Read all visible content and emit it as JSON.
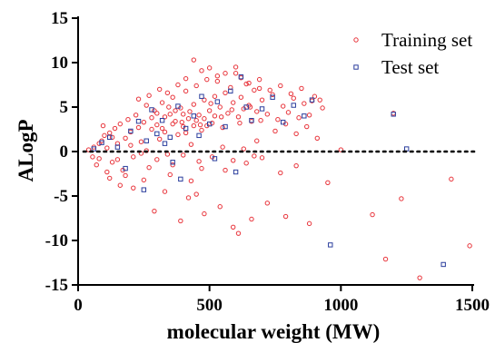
{
  "chart_data": {
    "type": "scatter",
    "xlabel": "molecular weight (MW)",
    "ylabel": "ALogP",
    "xlim": [
      0,
      1500
    ],
    "ylim": [
      -15,
      15
    ],
    "xticks": [
      0,
      500,
      1000,
      1500
    ],
    "xtick_labels": [
      "0",
      "500",
      "1000",
      "1500"
    ],
    "yticks": [
      -15,
      -10,
      -5,
      0,
      5,
      10,
      15
    ],
    "ytick_labels": [
      "-15",
      "-10",
      "-5",
      "0",
      "5",
      "10",
      "15"
    ],
    "reference_line": {
      "y": 0,
      "style": "dotted",
      "color": "#000000"
    },
    "grid": false,
    "legend_position": "top-right",
    "series": [
      {
        "name": "Training set",
        "marker": "circle",
        "color": "#e8333a",
        "points": [
          [
            40,
            0.2
          ],
          [
            60,
            0.5
          ],
          [
            80,
            -0.8
          ],
          [
            90,
            1.2
          ],
          [
            100,
            1.8
          ],
          [
            110,
            0.4
          ],
          [
            120,
            2.1
          ],
          [
            130,
            -1.2
          ],
          [
            140,
            2.6
          ],
          [
            150,
            0.9
          ],
          [
            160,
            3.1
          ],
          [
            170,
            -2.1
          ],
          [
            180,
            1.5
          ],
          [
            190,
            3.6
          ],
          [
            200,
            2.2
          ],
          [
            210,
            -0.6
          ],
          [
            220,
            4.1
          ],
          [
            230,
            2.7
          ],
          [
            240,
            1.1
          ],
          [
            250,
            3.3
          ],
          [
            260,
            5.2
          ],
          [
            270,
            -1.8
          ],
          [
            280,
            2.5
          ],
          [
            290,
            4.6
          ],
          [
            300,
            3.0
          ],
          [
            310,
            1.4
          ],
          [
            320,
            5.5
          ],
          [
            330,
            2.2
          ],
          [
            340,
            -0.3
          ],
          [
            350,
            4.2
          ],
          [
            360,
            6.1
          ],
          [
            370,
            3.4
          ],
          [
            380,
            1.9
          ],
          [
            390,
            4.9
          ],
          [
            400,
            2.8
          ],
          [
            410,
            6.8
          ],
          [
            420,
            3.7
          ],
          [
            430,
            0.8
          ],
          [
            440,
            5.3
          ],
          [
            450,
            7.4
          ],
          [
            460,
            4.1
          ],
          [
            470,
            2.4
          ],
          [
            480,
            5.8
          ],
          [
            490,
            8.1
          ],
          [
            500,
            4.6
          ],
          [
            510,
            3.2
          ],
          [
            520,
            6.2
          ],
          [
            530,
            8.5
          ],
          [
            540,
            5.0
          ],
          [
            550,
            2.7
          ],
          [
            560,
            6.6
          ],
          [
            570,
            4.3
          ],
          [
            580,
            7.2
          ],
          [
            590,
            5.5
          ],
          [
            600,
            8.8
          ],
          [
            610,
            3.9
          ],
          [
            620,
            6.1
          ],
          [
            630,
            4.8
          ],
          [
            640,
            7.6
          ],
          [
            650,
            5.2
          ],
          [
            660,
            3.4
          ],
          [
            670,
            6.9
          ],
          [
            680,
            4.5
          ],
          [
            690,
            7.1
          ],
          [
            700,
            5.8
          ],
          [
            720,
            4.2
          ],
          [
            740,
            6.4
          ],
          [
            760,
            3.6
          ],
          [
            780,
            5.1
          ],
          [
            800,
            4.4
          ],
          [
            820,
            6.0
          ],
          [
            840,
            3.8
          ],
          [
            860,
            5.4
          ],
          [
            880,
            4.1
          ],
          [
            900,
            6.2
          ],
          [
            920,
            5.8
          ],
          [
            160,
            -3.8
          ],
          [
            210,
            -4.1
          ],
          [
            180,
            -2.7
          ],
          [
            250,
            -3.2
          ],
          [
            290,
            -6.7
          ],
          [
            330,
            -4.5
          ],
          [
            390,
            -7.8
          ],
          [
            420,
            -5.2
          ],
          [
            450,
            -4.8
          ],
          [
            480,
            -7.0
          ],
          [
            540,
            -6.2
          ],
          [
            590,
            -8.5
          ],
          [
            610,
            -9.2
          ],
          [
            660,
            -7.6
          ],
          [
            720,
            -5.8
          ],
          [
            790,
            -7.3
          ],
          [
            880,
            -8.1
          ],
          [
            950,
            -3.5
          ],
          [
            1000,
            0.2
          ],
          [
            1120,
            -7.1
          ],
          [
            1170,
            -12.1
          ],
          [
            1200,
            4.3
          ],
          [
            1230,
            -5.3
          ],
          [
            1300,
            -14.2
          ],
          [
            1420,
            -3.1
          ],
          [
            1490,
            -10.6
          ],
          [
            560,
            -2.1
          ],
          [
            640,
            -1.3
          ],
          [
            700,
            -0.7
          ],
          [
            770,
            -2.4
          ],
          [
            830,
            -1.6
          ],
          [
            350,
            -2.6
          ],
          [
            430,
            -3.3
          ],
          [
            470,
            -1.9
          ],
          [
            120,
            -3.0
          ],
          [
            70,
            -1.5
          ],
          [
            95,
            2.9
          ],
          [
            230,
            5.9
          ],
          [
            270,
            6.3
          ],
          [
            310,
            7.0
          ],
          [
            340,
            6.6
          ],
          [
            380,
            7.5
          ],
          [
            410,
            8.2
          ],
          [
            440,
            10.3
          ],
          [
            470,
            9.1
          ],
          [
            500,
            9.4
          ],
          [
            530,
            7.9
          ],
          [
            560,
            8.8
          ],
          [
            600,
            9.5
          ],
          [
            620,
            8.3
          ],
          [
            650,
            7.7
          ],
          [
            690,
            8.1
          ],
          [
            730,
            6.9
          ],
          [
            770,
            7.4
          ],
          [
            810,
            6.5
          ],
          [
            850,
            7.1
          ],
          [
            890,
            5.7
          ],
          [
            930,
            4.9
          ],
          [
            750,
            2.3
          ],
          [
            790,
            3.1
          ],
          [
            830,
            2.0
          ],
          [
            870,
            2.8
          ],
          [
            910,
            1.5
          ],
          [
            680,
            1.2
          ],
          [
            260,
            0.1
          ],
          [
            300,
            -0.9
          ],
          [
            360,
            -1.5
          ],
          [
            400,
            -0.4
          ],
          [
            460,
            -1.1
          ],
          [
            510,
            -0.6
          ],
          [
            550,
            0.5
          ],
          [
            590,
            -1.0
          ],
          [
            630,
            0.3
          ],
          [
            670,
            -0.5
          ],
          [
            200,
            0.7
          ],
          [
            240,
            -0.2
          ],
          [
            150,
            -0.9
          ],
          [
            130,
            1.6
          ],
          [
            110,
            -2.3
          ],
          [
            80,
            0.9
          ],
          [
            55,
            -0.6
          ],
          [
            330,
            3.9
          ],
          [
            370,
            4.6
          ],
          [
            410,
            2.1
          ],
          [
            450,
            3.5
          ],
          [
            490,
            2.9
          ],
          [
            520,
            4.0
          ],
          [
            280,
            3.8
          ],
          [
            320,
            2.6
          ],
          [
            360,
            3.1
          ],
          [
            400,
            4.2
          ],
          [
            440,
            2.9
          ],
          [
            480,
            3.7
          ],
          [
            300,
            4.3
          ],
          [
            345,
            5.0
          ],
          [
            395,
            3.3
          ],
          [
            425,
            4.5
          ],
          [
            465,
            3.0
          ],
          [
            505,
            5.4
          ],
          [
            545,
            3.9
          ],
          [
            585,
            4.7
          ],
          [
            615,
            3.2
          ],
          [
            655,
            5.0
          ],
          [
            695,
            3.5
          ]
        ]
      },
      {
        "name": "Test set",
        "marker": "square",
        "color": "#2a3d9c",
        "points": [
          [
            60,
            0.3
          ],
          [
            90,
            1.0
          ],
          [
            120,
            1.6
          ],
          [
            150,
            0.5
          ],
          [
            180,
            -1.9
          ],
          [
            200,
            2.3
          ],
          [
            230,
            3.4
          ],
          [
            260,
            1.2
          ],
          [
            280,
            4.7
          ],
          [
            300,
            2.0
          ],
          [
            320,
            3.5
          ],
          [
            350,
            1.6
          ],
          [
            380,
            5.1
          ],
          [
            410,
            2.6
          ],
          [
            440,
            4.0
          ],
          [
            470,
            6.2
          ],
          [
            500,
            3.1
          ],
          [
            530,
            5.6
          ],
          [
            560,
            2.8
          ],
          [
            580,
            6.8
          ],
          [
            600,
            -2.3
          ],
          [
            620,
            8.4
          ],
          [
            640,
            5.0
          ],
          [
            660,
            3.5
          ],
          [
            700,
            4.8
          ],
          [
            740,
            6.1
          ],
          [
            780,
            3.3
          ],
          [
            820,
            5.2
          ],
          [
            860,
            4.0
          ],
          [
            890,
            5.8
          ],
          [
            250,
            -4.3
          ],
          [
            390,
            -3.1
          ],
          [
            520,
            -0.8
          ],
          [
            1250,
            0.3
          ],
          [
            1200,
            4.2
          ],
          [
            960,
            -10.5
          ],
          [
            1390,
            -12.7
          ],
          [
            330,
            0.9
          ],
          [
            360,
            -1.2
          ],
          [
            460,
            1.8
          ]
        ]
      }
    ]
  }
}
